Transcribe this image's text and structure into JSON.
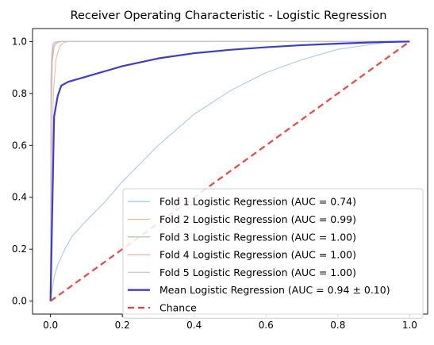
{
  "chart_data": {
    "type": "line",
    "title": "Receiver Operating Characteristic - Logistic Regression",
    "xlabel": "",
    "ylabel": "",
    "xlim": [
      -0.05,
      1.05
    ],
    "ylim": [
      -0.05,
      1.05
    ],
    "xticks": [
      "0.0",
      "0.2",
      "0.4",
      "0.6",
      "0.8",
      "1.0"
    ],
    "yticks": [
      "0.0",
      "0.2",
      "0.4",
      "0.6",
      "0.8",
      "1.0"
    ],
    "grid": false,
    "legend_position": "lower-right",
    "series": [
      {
        "name": "Fold 1 Logistic Regression (AUC = 0.74)",
        "color": "#9ec5e8",
        "style": "solid",
        "x": [
          0,
          0.01,
          0.02,
          0.04,
          0.06,
          0.1,
          0.15,
          0.2,
          0.3,
          0.4,
          0.5,
          0.6,
          0.7,
          0.8,
          0.9,
          0.95,
          1.0
        ],
        "y": [
          0,
          0.09,
          0.14,
          0.2,
          0.25,
          0.31,
          0.38,
          0.46,
          0.6,
          0.72,
          0.81,
          0.88,
          0.93,
          0.97,
          0.99,
          1.0,
          1.0
        ]
      },
      {
        "name": "Fold 2 Logistic Regression (AUC = 0.99)",
        "color": "#f6b48e",
        "style": "solid",
        "x": [
          0,
          0.003,
          0.008,
          0.015,
          0.025,
          0.035,
          0.05,
          1.0
        ],
        "y": [
          0,
          0.55,
          0.8,
          0.93,
          0.98,
          0.995,
          1.0,
          1.0
        ]
      },
      {
        "name": "Fold 3 Logistic Regression (AUC = 1.00)",
        "color": "#a8c9a0",
        "style": "solid",
        "x": [
          0,
          0.002,
          0.005,
          0.01,
          0.018,
          0.03,
          1.0
        ],
        "y": [
          0,
          0.72,
          0.92,
          0.98,
          0.995,
          1.0,
          1.0
        ]
      },
      {
        "name": "Fold 4 Logistic Regression (AUC = 1.00)",
        "color": "#e8a3a3",
        "style": "solid",
        "x": [
          0,
          0.002,
          0.004,
          0.008,
          0.015,
          0.025,
          1.0
        ],
        "y": [
          0,
          0.78,
          0.93,
          0.985,
          0.998,
          1.0,
          1.0
        ]
      },
      {
        "name": "Fold 5 Logistic Regression (AUC = 1.00)",
        "color": "#c8c3ea",
        "style": "solid",
        "x": [
          0,
          0.001,
          0.003,
          0.006,
          0.012,
          0.02,
          1.0
        ],
        "y": [
          0,
          0.85,
          0.95,
          0.99,
          0.998,
          1.0,
          1.0
        ]
      },
      {
        "name": "Mean Logistic Regression (AUC = 0.94 ± 0.10)",
        "color": "#2f2fe0",
        "style": "solid-bold",
        "x": [
          0,
          0.01,
          0.02,
          0.03,
          0.05,
          0.1,
          0.15,
          0.2,
          0.3,
          0.4,
          0.5,
          0.6,
          0.7,
          0.8,
          0.9,
          1.0
        ],
        "y": [
          0,
          0.71,
          0.79,
          0.83,
          0.845,
          0.865,
          0.885,
          0.905,
          0.935,
          0.955,
          0.968,
          0.978,
          0.986,
          0.992,
          0.997,
          1.0
        ]
      },
      {
        "name": "Chance",
        "color": "#f03a3a",
        "style": "dashed",
        "x": [
          0,
          1
        ],
        "y": [
          0,
          1
        ]
      }
    ]
  }
}
